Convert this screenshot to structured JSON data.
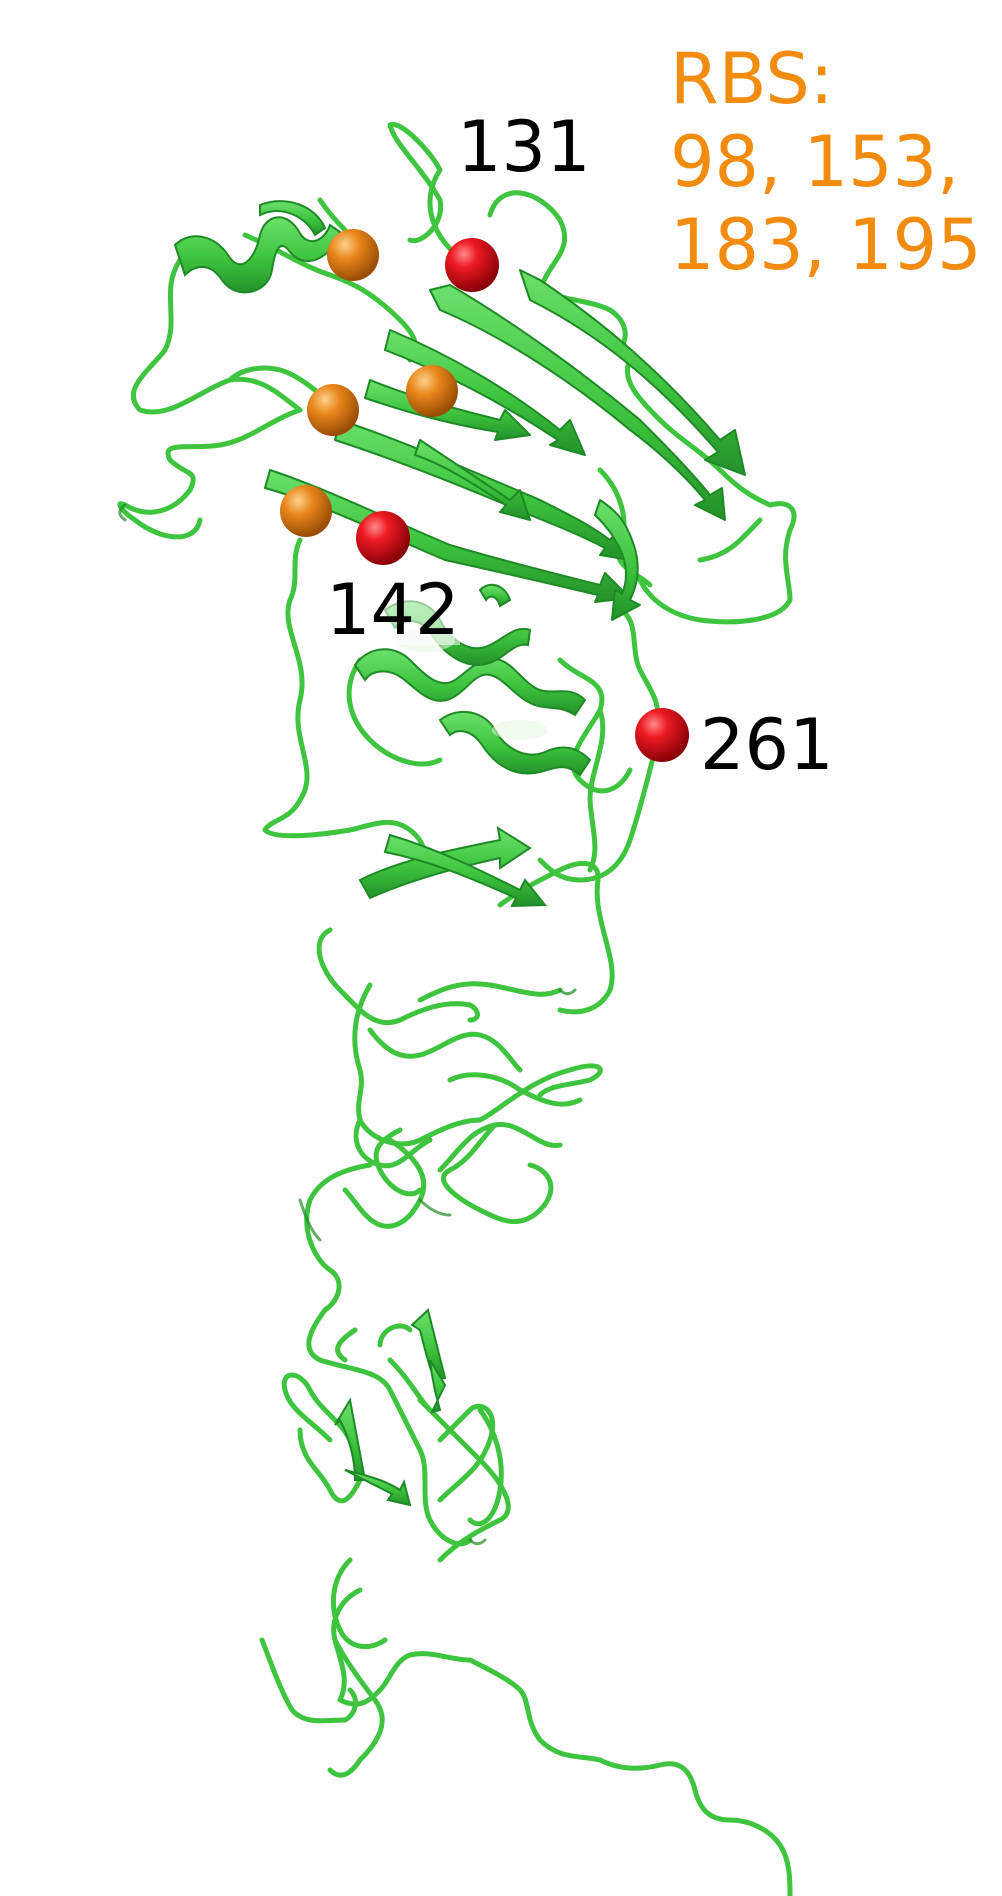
{
  "colors": {
    "backbone": "#3ec43e",
    "backbone_dark": "#1e8a26",
    "highlight_residue": "#e8101a",
    "rbs_residue": "#e07a10",
    "rbs_text": "#f28c0f",
    "label_text": "#000000"
  },
  "residue_labels": {
    "r131": "131",
    "r142": "142",
    "r261": "261"
  },
  "rbs": {
    "title": "RBS:",
    "line1": "98, 153,",
    "line2": "183, 195"
  }
}
